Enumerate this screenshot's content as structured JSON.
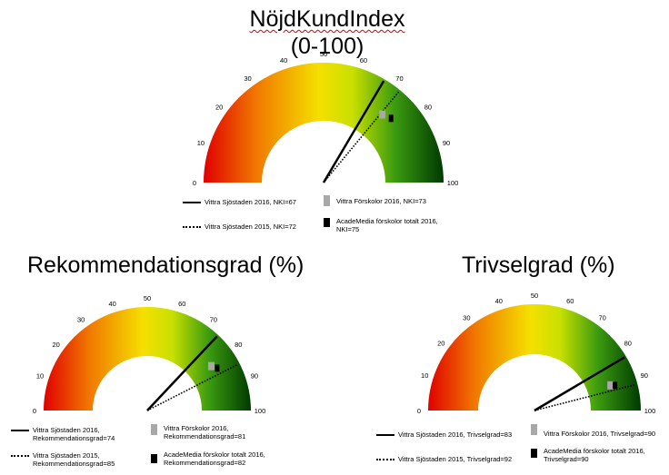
{
  "chart_data": [
    {
      "type": "gauge",
      "title_lines": [
        "NöjdKundIndex",
        "(0-100)"
      ],
      "range": [
        0,
        100
      ],
      "tick_labels": [
        "0",
        "10",
        "20",
        "30",
        "40",
        "50",
        "60",
        "70",
        "80",
        "90",
        "100"
      ],
      "series": [
        {
          "name": "Vittra Sjöstaden 2016, NKI=67",
          "value": 67,
          "marker": "solid-line"
        },
        {
          "name": "Vittra Sjöstaden 2015, NKI=72",
          "value": 72,
          "marker": "dotted-line"
        },
        {
          "name": "Vittra Förskolor 2016, NKI=73",
          "value": 73,
          "marker": "grey-box"
        },
        {
          "name": "AcadeMedia förskolor totalt 2016, NKI=75",
          "value": 75,
          "marker": "black-box"
        }
      ]
    },
    {
      "type": "gauge",
      "title_lines": [
        "Rekommendationsgrad (%)"
      ],
      "range": [
        0,
        100
      ],
      "tick_labels": [
        "0",
        "10",
        "20",
        "30",
        "40",
        "50",
        "60",
        "70",
        "80",
        "90",
        "100"
      ],
      "series": [
        {
          "name": "Vittra Sjöstaden 2016, Rekommendationsgrad=74",
          "value": 74,
          "marker": "solid-line"
        },
        {
          "name": "Vittra Sjöstaden 2015, Rekommendationsgrad=85",
          "value": 85,
          "marker": "dotted-line"
        },
        {
          "name": "Vittra Förskolor 2016, Rekommendationsgrad=81",
          "value": 81,
          "marker": "grey-box"
        },
        {
          "name": "AcadeMedia förskolor totalt 2016, Rekommendationsgrad=82",
          "value": 82,
          "marker": "black-box"
        }
      ]
    },
    {
      "type": "gauge",
      "title_lines": [
        "Trivselgrad (%)"
      ],
      "range": [
        0,
        100
      ],
      "tick_labels": [
        "0",
        "10",
        "20",
        "30",
        "40",
        "50",
        "60",
        "70",
        "80",
        "90",
        "100"
      ],
      "series": [
        {
          "name": "Vittra Sjöstaden 2016, Trivselgrad=83",
          "value": 83,
          "marker": "solid-line"
        },
        {
          "name": "Vittra Sjöstaden 2015, Trivselgrad=92",
          "value": 92,
          "marker": "dotted-line"
        },
        {
          "name": "Vittra Förskolor 2016, Trivselgrad=90",
          "value": 90,
          "marker": "grey-box"
        },
        {
          "name": "AcadeMedia förskolor totalt 2016, Trivselgrad=90",
          "value": 90,
          "marker": "black-box"
        }
      ]
    }
  ],
  "legends": [
    {
      "solid": "Vittra Sjöstaden 2016, NKI=67",
      "dotted": "Vittra Sjöstaden 2015, NKI=72",
      "grey": "Vittra Förskolor 2016, NKI=73",
      "black_1": "AcadeMedia förskolor totalt 2016,",
      "black_2": "NKI=75"
    },
    {
      "solid_1": "Vittra Sjöstaden 2016,",
      "solid_2": "Rekommendationsgrad=74",
      "dotted_1": "Vittra Sjöstaden 2015,",
      "dotted_2": "Rekommendationsgrad=85",
      "grey_1": "Vittra Förskolor 2016,",
      "grey_2": "Rekommendationsgrad=81",
      "black_1": "AcadeMedia förskolor totalt 2016,",
      "black_2": "Rekommendationsgrad=82"
    },
    {
      "solid": "Vittra Sjöstaden 2016, Trivselgrad=83",
      "dotted": "Vittra Sjöstaden 2015, Trivselgrad=92",
      "grey": "Vittra Förskolor 2016, Trivselgrad=90",
      "black_1": "AcadeMedia förskolor totalt 2016,",
      "black_2": "Trivselgrad=90"
    }
  ],
  "colors": {
    "low": "#e00000",
    "mid_low": "#f07800",
    "mid": "#f5e000",
    "mid_high": "#c8e000",
    "high": "#3a9a10",
    "top": "#003a00",
    "grey_marker": "#a8a8a8"
  }
}
